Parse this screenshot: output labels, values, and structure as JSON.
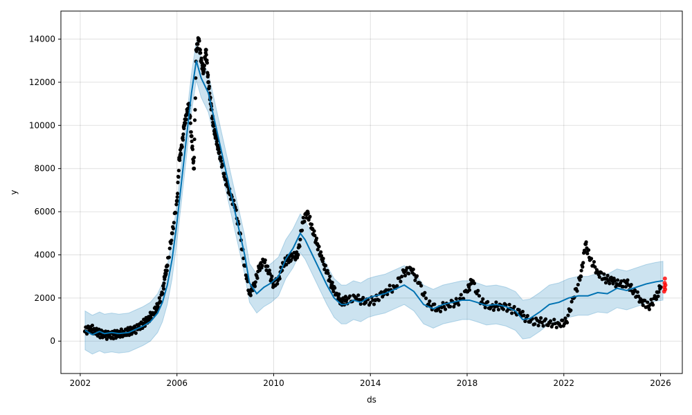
{
  "chart_data": {
    "type": "line",
    "xlabel": "ds",
    "ylabel": "y",
    "grid": true,
    "xlim": [
      2001.2,
      2026.9
    ],
    "ylim": [
      -1500,
      15300
    ],
    "x_ticks": [
      2002,
      2006,
      2010,
      2014,
      2018,
      2022,
      2026
    ],
    "y_ticks": [
      0,
      2000,
      4000,
      6000,
      8000,
      10000,
      12000,
      14000
    ],
    "colors": {
      "observed": "#000000",
      "forecast_line": "#0072B2",
      "interval_fill": "#0072B2",
      "recent_points": "#ff0000"
    },
    "series": [
      {
        "name": "",
        "kind": "forecast",
        "x": [
          2002.2,
          2002.5,
          2002.8,
          2003.0,
          2003.3,
          2003.6,
          2004.0,
          2004.3,
          2004.6,
          2004.9,
          2005.2,
          2005.4,
          2005.6,
          2005.8,
          2006.0,
          2006.2,
          2006.4,
          2006.6,
          2006.8,
          2007.0,
          2007.3,
          2007.6,
          2007.9,
          2008.2,
          2008.5,
          2008.8,
          2009.0,
          2009.3,
          2009.6,
          2009.9,
          2010.2,
          2010.5,
          2010.8,
          2011.1,
          2011.3,
          2011.6,
          2011.9,
          2012.2,
          2012.5,
          2012.8,
          2013.0,
          2013.3,
          2013.6,
          2013.9,
          2014.2,
          2014.6,
          2015.0,
          2015.4,
          2015.8,
          2016.2,
          2016.6,
          2017.0,
          2017.4,
          2017.8,
          2018.1,
          2018.4,
          2018.8,
          2019.2,
          2019.6,
          2020.0,
          2020.3,
          2020.6,
          2021.0,
          2021.4,
          2021.8,
          2022.2,
          2022.6,
          2023.0,
          2023.4,
          2023.8,
          2024.2,
          2024.6,
          2025.0,
          2025.4,
          2025.8,
          2026.1
        ],
        "y": [
          500,
          300,
          450,
          350,
          400,
          350,
          400,
          550,
          700,
          900,
          1300,
          1800,
          2600,
          3800,
          5500,
          7500,
          9500,
          11500,
          13000,
          12200,
          11500,
          10000,
          8500,
          7000,
          5500,
          4000,
          2700,
          2200,
          2500,
          2700,
          3000,
          3800,
          4300,
          5000,
          4700,
          4000,
          3300,
          2600,
          2000,
          1700,
          1700,
          1900,
          1800,
          2000,
          2100,
          2200,
          2400,
          2600,
          2300,
          1700,
          1500,
          1700,
          1800,
          1900,
          1900,
          1800,
          1650,
          1700,
          1600,
          1400,
          1000,
          1050,
          1350,
          1700,
          1800,
          2000,
          2100,
          2100,
          2250,
          2200,
          2450,
          2350,
          2500,
          2650,
          2750,
          2800
        ],
        "interval_half_width": 900
      },
      {
        "name": "",
        "kind": "observed",
        "x": [
          2002.2,
          2002.4,
          2002.6,
          2002.8,
          2003.0,
          2003.2,
          2003.4,
          2003.6,
          2003.8,
          2004.0,
          2004.2,
          2004.4,
          2004.6,
          2004.8,
          2005.0,
          2005.2,
          2005.4,
          2005.5,
          2005.6,
          2005.8,
          2006.0,
          2006.1,
          2006.2,
          2006.3,
          2006.4,
          2006.5,
          2006.6,
          2006.7,
          2006.8,
          2006.9,
          2007.0,
          2007.1,
          2007.2,
          2007.3,
          2007.4,
          2007.5,
          2007.6,
          2007.7,
          2007.8,
          2008.0,
          2008.2,
          2008.4,
          2008.6,
          2008.8,
          2009.0,
          2009.2,
          2009.4,
          2009.6,
          2009.8,
          2010.0,
          2010.2,
          2010.4,
          2010.6,
          2010.8,
          2011.0,
          2011.2,
          2011.4,
          2011.6,
          2011.8,
          2012.0,
          2012.2,
          2012.4,
          2012.6,
          2012.8,
          2013.0,
          2013.4,
          2013.8,
          2014.2,
          2014.6,
          2015.0,
          2015.4,
          2015.7,
          2016.0,
          2016.4,
          2016.8,
          2017.2,
          2017.6,
          2018.0,
          2018.2,
          2018.6,
          2019.0,
          2019.4,
          2019.8,
          2020.2,
          2020.6,
          2021.0,
          2021.4,
          2021.8,
          2022.1,
          2022.4,
          2022.7,
          2022.9,
          2023.1,
          2023.4,
          2023.7,
          2024.0,
          2024.3,
          2024.6,
          2024.9,
          2025.2,
          2025.5,
          2025.8,
          2026.0
        ],
        "y": [
          450,
          600,
          500,
          350,
          300,
          250,
          300,
          350,
          400,
          450,
          500,
          600,
          800,
          1000,
          1300,
          1600,
          2200,
          3000,
          3500,
          5000,
          6500,
          8500,
          9000,
          10000,
          10500,
          11000,
          9500,
          8000,
          13500,
          14000,
          13000,
          12500,
          13500,
          12000,
          11000,
          10000,
          9500,
          9000,
          8500,
          7500,
          6800,
          6200,
          5000,
          3500,
          2200,
          2600,
          3400,
          3700,
          3200,
          2600,
          2900,
          3600,
          3800,
          3900,
          4000,
          5500,
          6000,
          5200,
          4500,
          3800,
          3200,
          2600,
          2200,
          1800,
          1900,
          2000,
          1800,
          1900,
          2300,
          2500,
          3200,
          3300,
          2700,
          1700,
          1500,
          1700,
          1800,
          2300,
          2800,
          1800,
          1600,
          1650,
          1500,
          1300,
          900,
          900,
          850,
          800,
          900,
          2000,
          3000,
          4500,
          3800,
          3200,
          2900,
          2800,
          2600,
          2700,
          2300,
          1900,
          1600,
          2000,
          2500
        ]
      },
      {
        "name": "",
        "kind": "recent",
        "x": [
          2026.15,
          2026.16,
          2026.17,
          2026.18,
          2026.19,
          2026.2
        ],
        "y": [
          2300,
          2500,
          2700,
          2900,
          2400,
          2600
        ]
      }
    ]
  }
}
